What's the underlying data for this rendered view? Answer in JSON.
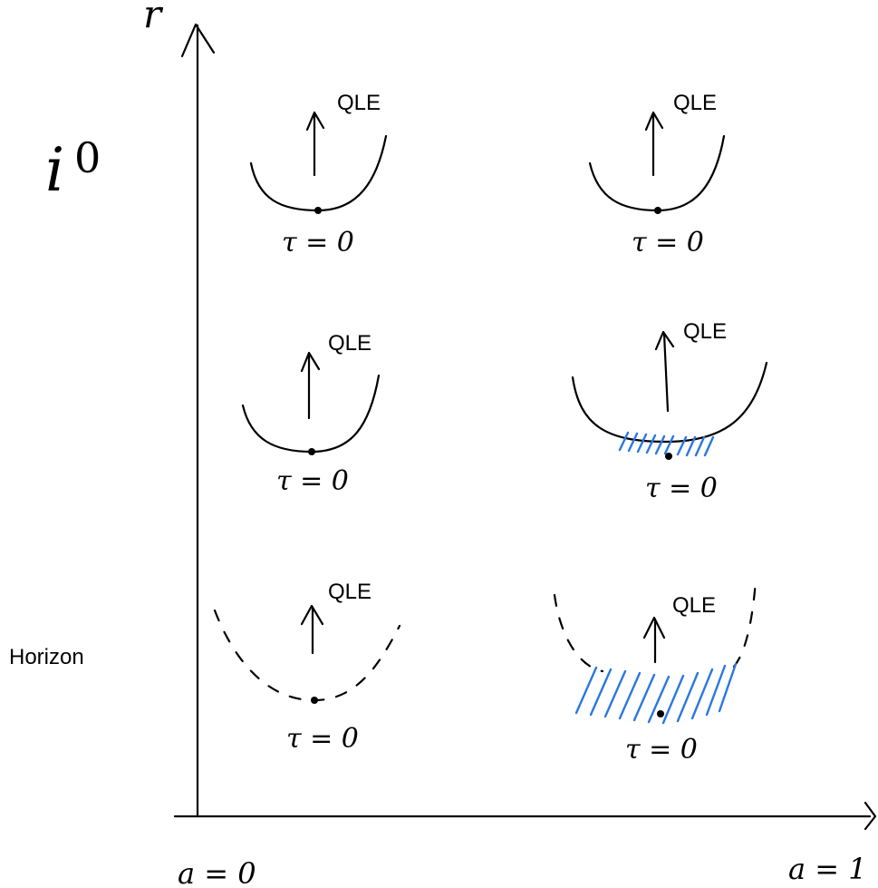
{
  "axes": {
    "y_label_var": "r",
    "x_left_label": "a = 0",
    "x_right_label": "a = 1"
  },
  "side_labels": {
    "spatial_infinity_base": "i",
    "spatial_infinity_sup": "0",
    "horizon": "Horizon"
  },
  "panels": [
    {
      "arrow_label": "QLE",
      "bottom_label": "τ = 0",
      "style": "solid",
      "hatched": false
    },
    {
      "arrow_label": "QLE",
      "bottom_label": "τ = 0",
      "style": "solid",
      "hatched": false
    },
    {
      "arrow_label": "QLE",
      "bottom_label": "τ = 0",
      "style": "solid",
      "hatched": false
    },
    {
      "arrow_label": "QLE",
      "bottom_label": "τ = 0",
      "style": "solid",
      "hatched": true
    },
    {
      "arrow_label": "QLE",
      "bottom_label": "τ = 0",
      "style": "dashed",
      "hatched": false
    },
    {
      "arrow_label": "QLE",
      "bottom_label": "τ = 0",
      "style": "dashed",
      "hatched": true
    }
  ],
  "colors": {
    "ink": "#000000",
    "hatch": "#2a78e0"
  }
}
